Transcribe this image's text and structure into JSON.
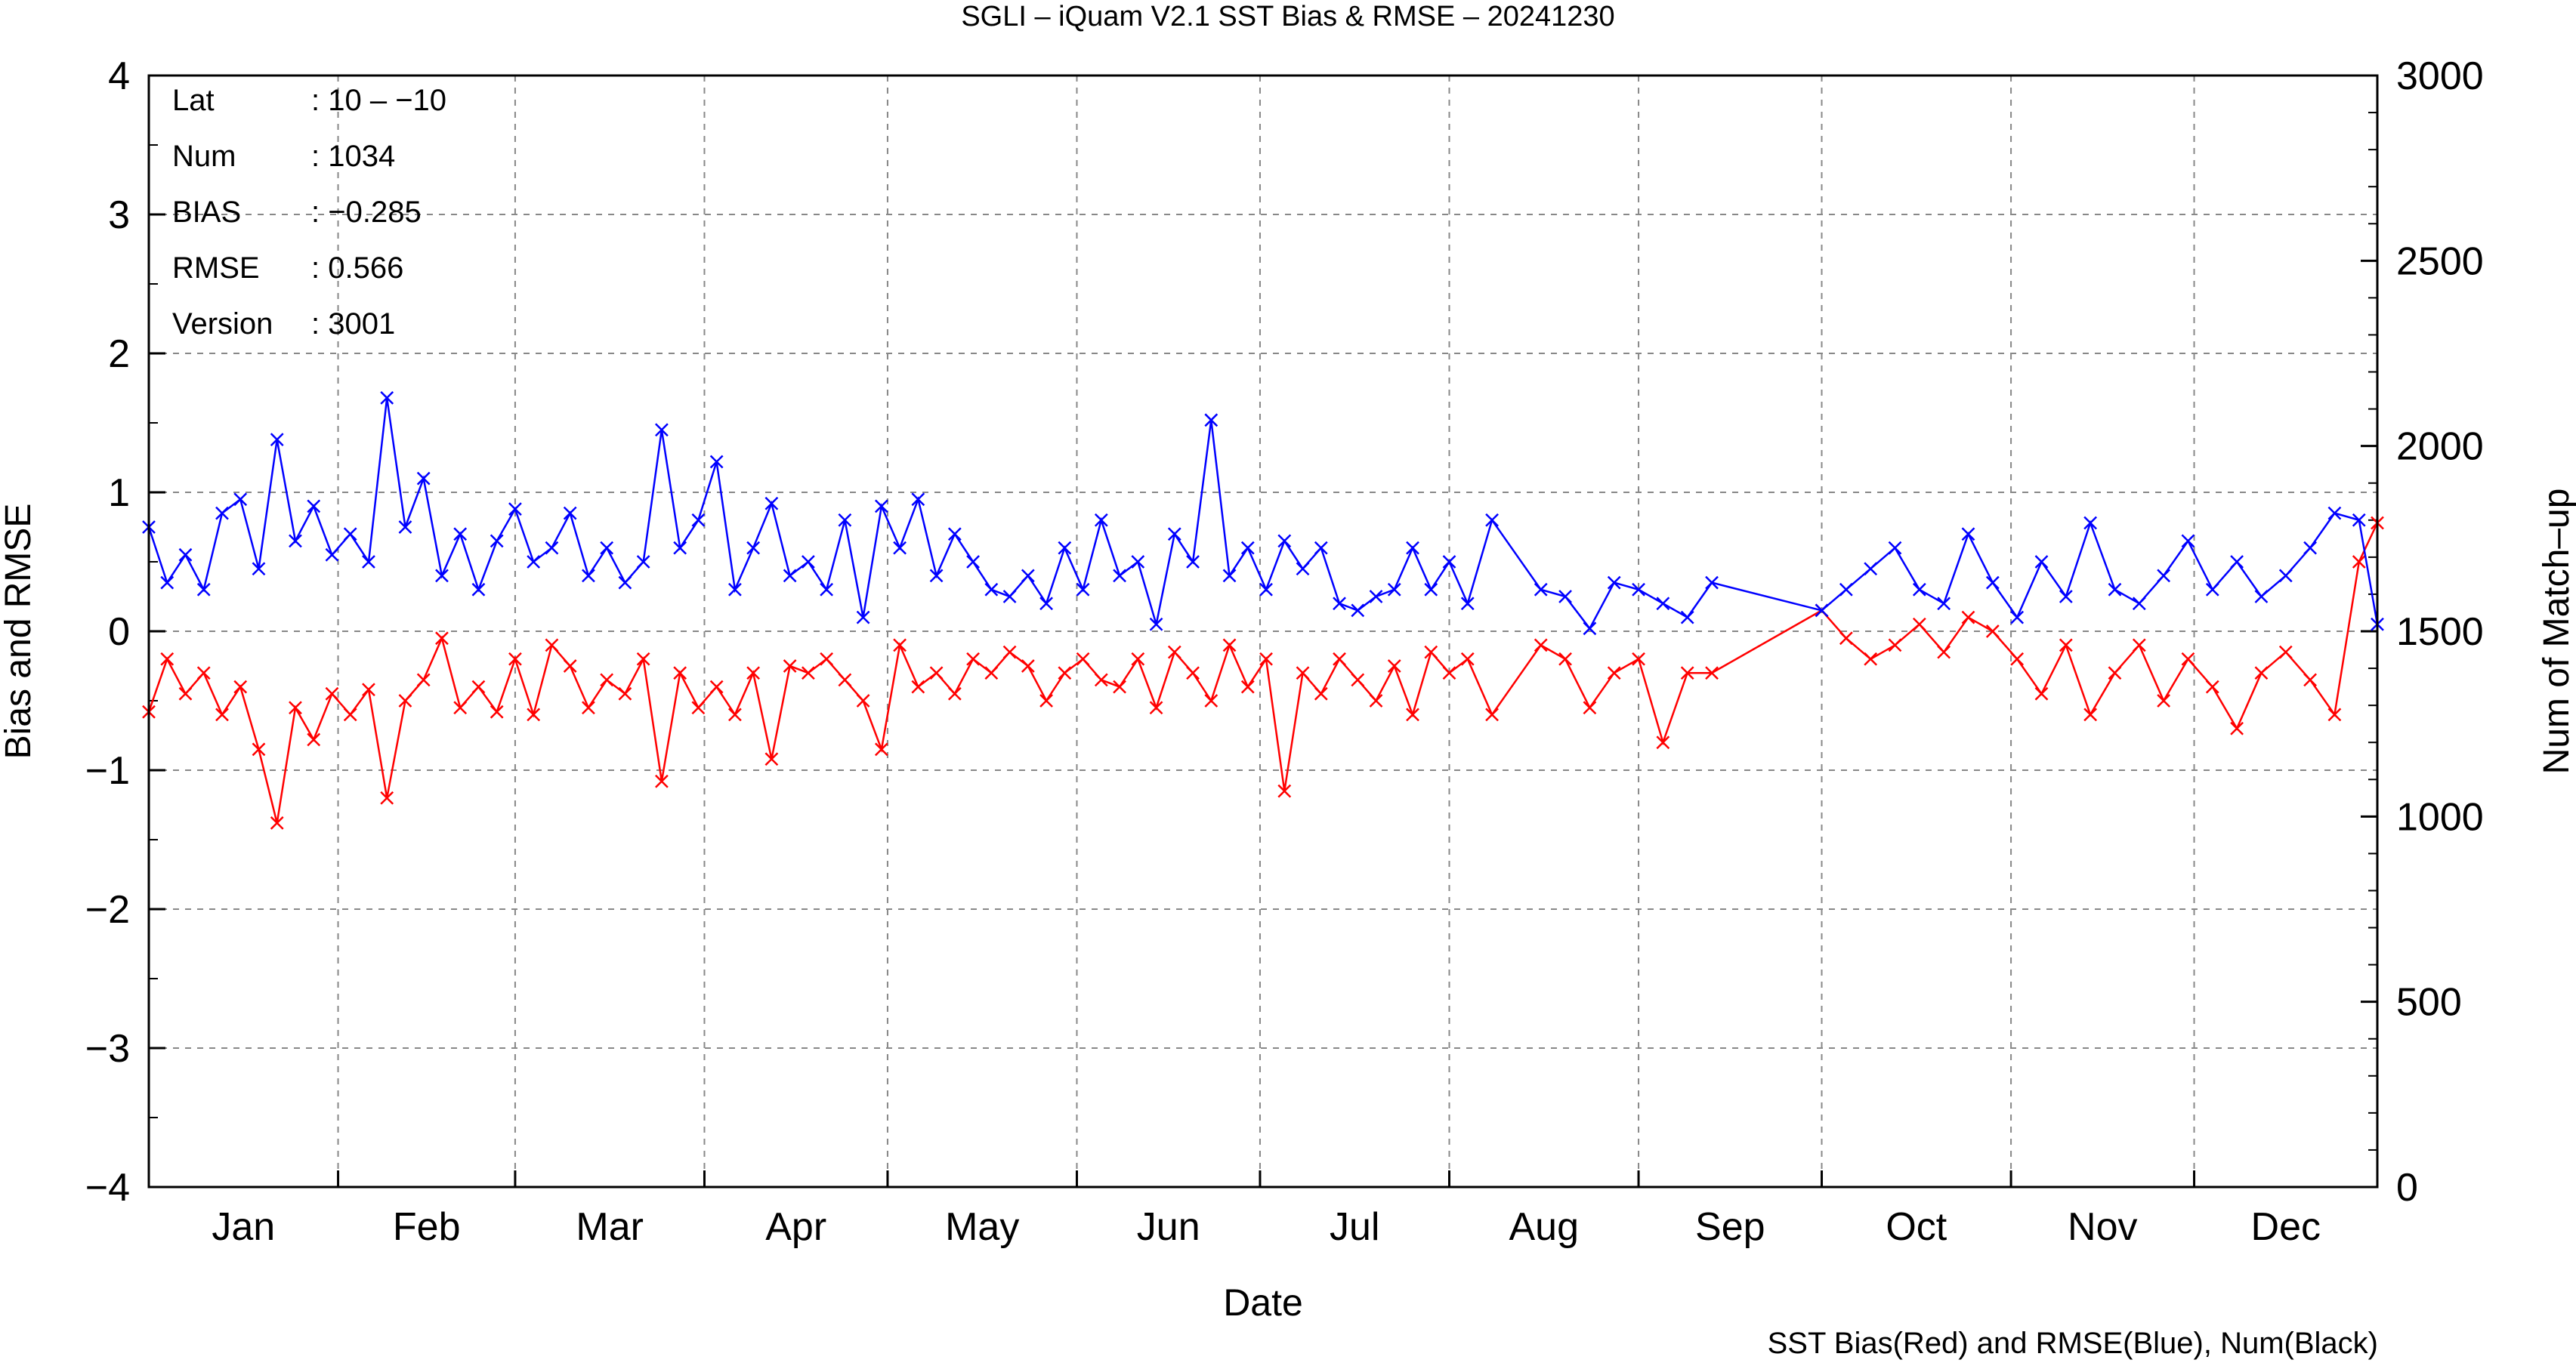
{
  "chart_data": {
    "type": "line",
    "title": "SGLI – iQuam V2.1 SST Bias & RMSE  – 20241230",
    "xlabel": "Date",
    "ylabel": "Bias and RMSE",
    "y2label": "Num of Match–up",
    "caption": "SST Bias(Red) and RMSE(Blue), Num(Black)",
    "xlim": [
      "2024-01-01",
      "2024-12-31"
    ],
    "ylim": [
      -4,
      4
    ],
    "y2lim": [
      0,
      3000
    ],
    "yticks": [
      "−4",
      "−3",
      "−2",
      "−1",
      "0",
      "1",
      "2",
      "3",
      "4"
    ],
    "y2ticks": [
      "0",
      "500",
      "1000",
      "1500",
      "2000",
      "2500",
      "3000"
    ],
    "xtick_labels": [
      "Jan",
      "Feb",
      "Mar",
      "Apr",
      "May",
      "Jun",
      "Jul",
      "Aug",
      "Sep",
      "Oct",
      "Nov",
      "Dec"
    ],
    "grid": true,
    "stats": [
      {
        "label": "Lat",
        "value": ": 10 – −10"
      },
      {
        "label": "Num",
        "value": ": 1034"
      },
      {
        "label": "BIAS",
        "value": ": −0.285"
      },
      {
        "label": "RMSE",
        "value": ": 0.566"
      },
      {
        "label": "Version",
        "value": ": 3001"
      }
    ],
    "series": [
      {
        "color": "#ff0000",
        "marker": "x",
        "x": [
          "2024-01-01",
          "2024-01-04",
          "2024-01-07",
          "2024-01-10",
          "2024-01-13",
          "2024-01-16",
          "2024-01-19",
          "2024-01-22",
          "2024-01-25",
          "2024-01-28",
          "2024-01-31",
          "2024-02-03",
          "2024-02-06",
          "2024-02-09",
          "2024-02-12",
          "2024-02-15",
          "2024-02-18",
          "2024-02-21",
          "2024-02-24",
          "2024-02-27",
          "2024-03-01",
          "2024-03-04",
          "2024-03-07",
          "2024-03-10",
          "2024-03-13",
          "2024-03-16",
          "2024-03-19",
          "2024-03-22",
          "2024-03-25",
          "2024-03-28",
          "2024-03-31",
          "2024-04-03",
          "2024-04-06",
          "2024-04-09",
          "2024-04-12",
          "2024-04-15",
          "2024-04-18",
          "2024-04-21",
          "2024-04-24",
          "2024-04-27",
          "2024-04-30",
          "2024-05-03",
          "2024-05-06",
          "2024-05-09",
          "2024-05-12",
          "2024-05-15",
          "2024-05-18",
          "2024-05-21",
          "2024-05-24",
          "2024-05-27",
          "2024-05-30",
          "2024-06-02",
          "2024-06-05",
          "2024-06-08",
          "2024-06-11",
          "2024-06-14",
          "2024-06-17",
          "2024-06-20",
          "2024-06-23",
          "2024-06-26",
          "2024-06-29",
          "2024-07-02",
          "2024-07-05",
          "2024-07-08",
          "2024-07-11",
          "2024-07-14",
          "2024-07-17",
          "2024-07-20",
          "2024-07-23",
          "2024-07-26",
          "2024-07-29",
          "2024-08-01",
          "2024-08-04",
          "2024-08-08",
          "2024-08-16",
          "2024-08-20",
          "2024-08-24",
          "2024-08-28",
          "2024-09-01",
          "2024-09-05",
          "2024-09-09",
          "2024-09-13",
          "2024-10-01",
          "2024-10-05",
          "2024-10-09",
          "2024-10-13",
          "2024-10-17",
          "2024-10-21",
          "2024-10-25",
          "2024-10-29",
          "2024-11-02",
          "2024-11-06",
          "2024-11-10",
          "2024-11-14",
          "2024-11-18",
          "2024-11-22",
          "2024-11-26",
          "2024-11-30",
          "2024-12-04",
          "2024-12-08",
          "2024-12-12",
          "2024-12-16",
          "2024-12-20",
          "2024-12-24",
          "2024-12-28",
          "2024-12-31"
        ],
        "y": [
          -0.58,
          -0.2,
          -0.45,
          -0.3,
          -0.6,
          -0.4,
          -0.85,
          -1.38,
          -0.55,
          -0.78,
          -0.45,
          -0.6,
          -0.42,
          -1.2,
          -0.5,
          -0.35,
          -0.05,
          -0.55,
          -0.4,
          -0.58,
          -0.2,
          -0.6,
          -0.1,
          -0.25,
          -0.55,
          -0.35,
          -0.45,
          -0.2,
          -1.08,
          -0.3,
          -0.55,
          -0.4,
          -0.6,
          -0.3,
          -0.92,
          -0.25,
          -0.3,
          -0.2,
          -0.35,
          -0.5,
          -0.85,
          -0.1,
          -0.4,
          -0.3,
          -0.45,
          -0.2,
          -0.3,
          -0.15,
          -0.25,
          -0.5,
          -0.3,
          -0.2,
          -0.35,
          -0.4,
          -0.2,
          -0.55,
          -0.15,
          -0.3,
          -0.5,
          -0.1,
          -0.4,
          -0.2,
          -1.15,
          -0.3,
          -0.45,
          -0.2,
          -0.35,
          -0.5,
          -0.25,
          -0.6,
          -0.15,
          -0.3,
          -0.2,
          -0.6,
          -0.1,
          -0.2,
          -0.55,
          -0.3,
          -0.2,
          -0.8,
          -0.3,
          -0.3,
          0.15,
          -0.05,
          -0.2,
          -0.1,
          0.05,
          -0.15,
          0.1,
          0.0,
          -0.2,
          -0.45,
          -0.1,
          -0.6,
          -0.3,
          -0.1,
          -0.5,
          -0.2,
          -0.4,
          -0.7,
          -0.3,
          -0.15,
          -0.35,
          -0.6,
          0.5,
          0.78
        ]
      },
      {
        "color": "#0000ff",
        "marker": "x",
        "x": [
          "2024-01-01",
          "2024-01-04",
          "2024-01-07",
          "2024-01-10",
          "2024-01-13",
          "2024-01-16",
          "2024-01-19",
          "2024-01-22",
          "2024-01-25",
          "2024-01-28",
          "2024-01-31",
          "2024-02-03",
          "2024-02-06",
          "2024-02-09",
          "2024-02-12",
          "2024-02-15",
          "2024-02-18",
          "2024-02-21",
          "2024-02-24",
          "2024-02-27",
          "2024-03-01",
          "2024-03-04",
          "2024-03-07",
          "2024-03-10",
          "2024-03-13",
          "2024-03-16",
          "2024-03-19",
          "2024-03-22",
          "2024-03-25",
          "2024-03-28",
          "2024-03-31",
          "2024-04-03",
          "2024-04-06",
          "2024-04-09",
          "2024-04-12",
          "2024-04-15",
          "2024-04-18",
          "2024-04-21",
          "2024-04-24",
          "2024-04-27",
          "2024-04-30",
          "2024-05-03",
          "2024-05-06",
          "2024-05-09",
          "2024-05-12",
          "2024-05-15",
          "2024-05-18",
          "2024-05-21",
          "2024-05-24",
          "2024-05-27",
          "2024-05-30",
          "2024-06-02",
          "2024-06-05",
          "2024-06-08",
          "2024-06-11",
          "2024-06-14",
          "2024-06-17",
          "2024-06-20",
          "2024-06-23",
          "2024-06-26",
          "2024-06-29",
          "2024-07-02",
          "2024-07-05",
          "2024-07-08",
          "2024-07-11",
          "2024-07-14",
          "2024-07-17",
          "2024-07-20",
          "2024-07-23",
          "2024-07-26",
          "2024-07-29",
          "2024-08-01",
          "2024-08-04",
          "2024-08-08",
          "2024-08-16",
          "2024-08-20",
          "2024-08-24",
          "2024-08-28",
          "2024-09-01",
          "2024-09-05",
          "2024-09-09",
          "2024-09-13",
          "2024-10-01",
          "2024-10-05",
          "2024-10-09",
          "2024-10-13",
          "2024-10-17",
          "2024-10-21",
          "2024-10-25",
          "2024-10-29",
          "2024-11-02",
          "2024-11-06",
          "2024-11-10",
          "2024-11-14",
          "2024-11-18",
          "2024-11-22",
          "2024-11-26",
          "2024-11-30",
          "2024-12-04",
          "2024-12-08",
          "2024-12-12",
          "2024-12-16",
          "2024-12-20",
          "2024-12-24",
          "2024-12-28",
          "2024-12-31"
        ],
        "y": [
          0.75,
          0.35,
          0.55,
          0.3,
          0.85,
          0.95,
          0.45,
          1.38,
          0.65,
          0.9,
          0.55,
          0.7,
          0.5,
          1.68,
          0.75,
          1.1,
          0.4,
          0.7,
          0.3,
          0.65,
          0.88,
          0.5,
          0.6,
          0.85,
          0.4,
          0.6,
          0.35,
          0.5,
          1.45,
          0.6,
          0.8,
          1.22,
          0.3,
          0.6,
          0.92,
          0.4,
          0.5,
          0.3,
          0.8,
          0.1,
          0.9,
          0.6,
          0.95,
          0.4,
          0.7,
          0.5,
          0.3,
          0.25,
          0.4,
          0.2,
          0.6,
          0.3,
          0.8,
          0.4,
          0.5,
          0.05,
          0.7,
          0.5,
          1.52,
          0.4,
          0.6,
          0.3,
          0.65,
          0.45,
          0.6,
          0.2,
          0.15,
          0.25,
          0.3,
          0.6,
          0.3,
          0.5,
          0.2,
          0.8,
          0.3,
          0.25,
          0.02,
          0.35,
          0.3,
          0.2,
          0.1,
          0.35,
          0.15,
          0.3,
          0.45,
          0.6,
          0.3,
          0.2,
          0.7,
          0.35,
          0.1,
          0.5,
          0.25,
          0.78,
          0.3,
          0.2,
          0.4,
          0.65,
          0.3,
          0.5,
          0.25,
          0.4,
          0.6,
          0.85,
          0.8,
          0.05
        ]
      }
    ]
  }
}
